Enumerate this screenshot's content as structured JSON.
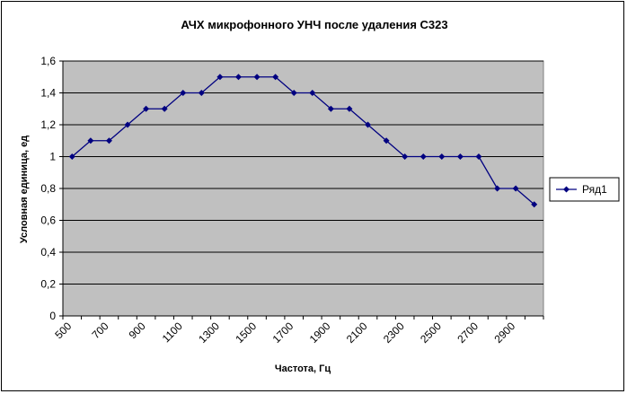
{
  "chart_data": {
    "type": "line",
    "title": "АЧХ микрофонного УНЧ после удаления С323",
    "xlabel": "Частота, Гц",
    "ylabel": "Условная единица, ед",
    "categories": [
      "500",
      "600",
      "700",
      "800",
      "900",
      "1000",
      "1100",
      "1200",
      "1300",
      "1400",
      "1500",
      "1600",
      "1700",
      "1800",
      "1900",
      "2000",
      "2100",
      "2200",
      "2300",
      "2400",
      "2500",
      "2600",
      "2700",
      "2800",
      "2900",
      "3000"
    ],
    "x_tick_labels": [
      "500",
      "700",
      "900",
      "1100",
      "1300",
      "1500",
      "1700",
      "1900",
      "2100",
      "2300",
      "2500",
      "2700",
      "2900"
    ],
    "y_tick_labels": [
      "0",
      "0,2",
      "0,4",
      "0,6",
      "0,8",
      "1",
      "1,2",
      "1,4",
      "1,6"
    ],
    "ylim": [
      0,
      1.6
    ],
    "grid": true,
    "legend_position": "right",
    "series": [
      {
        "name": "Ряд1",
        "color": "#000080",
        "values": [
          1.0,
          1.1,
          1.1,
          1.2,
          1.3,
          1.3,
          1.4,
          1.4,
          1.5,
          1.5,
          1.5,
          1.5,
          1.4,
          1.4,
          1.3,
          1.3,
          1.2,
          1.1,
          1.0,
          1.0,
          1.0,
          1.0,
          1.0,
          0.8,
          0.8,
          0.7
        ]
      }
    ],
    "plot_background": "#c0c0c0"
  }
}
